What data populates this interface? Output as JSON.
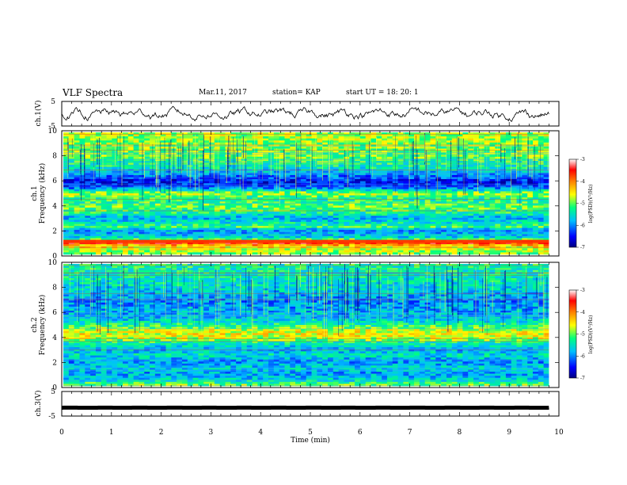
{
  "header": {
    "title": "VLF Spectra",
    "date": "Mar.11, 2017",
    "station": "station= KAP",
    "start": "start  UT =   18: 20: 1"
  },
  "panels": {
    "ch1_wave_label": "ch.1(V)",
    "ch1_spec_label": "ch.1",
    "ch2_spec_label": "ch.2",
    "freq_label": "Frequency (kHz)",
    "ch3_wave_label": "ch.3(V)",
    "xlabel": "Time (min)",
    "colorbar_label": "log(PSD)(V²/Hz)"
  },
  "chart_data": [
    {
      "type": "line",
      "name": "ch.1 waveform",
      "ylabel": "ch.1(V)",
      "ylim": [
        -5,
        5
      ],
      "yticks": [
        "5",
        "-5"
      ],
      "xlim": [
        0,
        10
      ],
      "data_end_min": 9.8,
      "mean": 0,
      "amplitude": 1.3
    },
    {
      "type": "heatmap",
      "name": "ch.1 spectrogram",
      "ylabel": "ch.1 Frequency (kHz)",
      "ylim": [
        0,
        10
      ],
      "yticks": [
        "0",
        "2",
        "4",
        "6",
        "8",
        "10"
      ],
      "colorbar": {
        "range": [
          -7,
          -3
        ],
        "ticks": [
          "-3",
          "-4",
          "-5",
          "-6",
          "-7"
        ],
        "label": "log(PSD)(V²/Hz)"
      },
      "profile_freq_kHz": [
        0.0,
        0.5,
        0.7,
        1.0,
        1.3,
        2.0,
        2.2,
        2.6,
        3.0,
        3.5,
        4.0,
        4.5,
        5.0,
        5.3,
        5.6,
        6.0,
        6.5,
        7.0,
        8.0,
        9.0,
        10.0
      ],
      "profile_logPSD": [
        -5.0,
        -4.6,
        -4.4,
        -3.4,
        -5.5,
        -6.0,
        -5.1,
        -5.5,
        -5.8,
        -5.2,
        -5.0,
        -5.3,
        -4.8,
        -5.7,
        -6.4,
        -6.5,
        -6.0,
        -5.5,
        -5.0,
        -4.9,
        -4.8
      ]
    },
    {
      "type": "heatmap",
      "name": "ch.2 spectrogram",
      "ylabel": "ch.2 Frequency (kHz)",
      "ylim": [
        0,
        10
      ],
      "yticks": [
        "0",
        "2",
        "4",
        "6",
        "8",
        "10"
      ],
      "colorbar": {
        "range": [
          -7,
          -3
        ],
        "ticks": [
          "-3",
          "-4",
          "-5",
          "-6",
          "-7"
        ],
        "label": "log(PSD)(V²/Hz)"
      },
      "profile_freq_kHz": [
        0.0,
        0.5,
        1.0,
        1.5,
        2.0,
        2.5,
        3.0,
        3.5,
        4.0,
        4.5,
        5.0,
        5.5,
        6.0,
        7.0,
        8.0,
        9.0,
        10.0
      ],
      "profile_logPSD": [
        -4.8,
        -5.6,
        -5.9,
        -5.6,
        -6.0,
        -5.5,
        -5.8,
        -5.4,
        -4.6,
        -4.6,
        -5.3,
        -5.7,
        -5.8,
        -6.0,
        -5.6,
        -5.4,
        -5.3
      ]
    },
    {
      "type": "line",
      "name": "ch.3 waveform",
      "ylabel": "ch.3(V)",
      "ylim": [
        -5,
        5
      ],
      "yticks": [
        "5",
        "-5"
      ],
      "xlim": [
        0,
        10
      ],
      "data_end_min": 9.8,
      "mean": -1.6,
      "amplitude": 0.05
    }
  ],
  "xaxis": {
    "label": "Time (min)",
    "ticks": [
      "0",
      "1",
      "2",
      "3",
      "4",
      "5",
      "6",
      "7",
      "8",
      "9",
      "10"
    ]
  },
  "colors": {
    "line": "#000000",
    "colormap": [
      "#000080",
      "#0000ff",
      "#00bfff",
      "#00ff80",
      "#ffff00",
      "#ff8000",
      "#ff0000",
      "#ffffff"
    ]
  }
}
